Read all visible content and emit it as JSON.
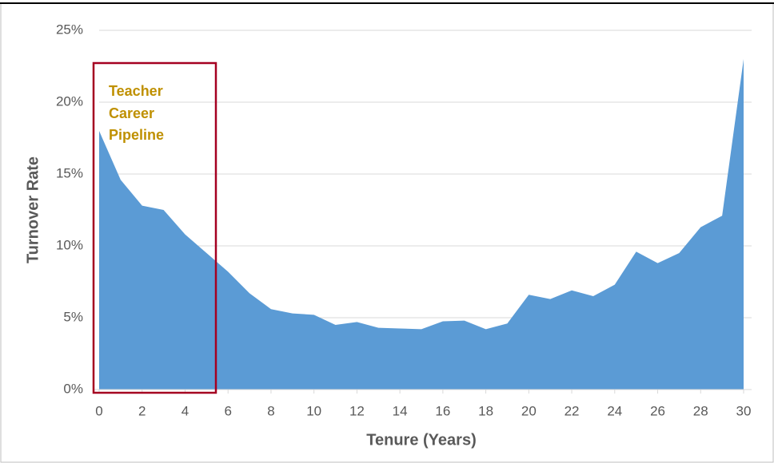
{
  "chart_data": {
    "type": "area",
    "x": [
      0,
      1,
      2,
      3,
      4,
      5,
      6,
      7,
      8,
      9,
      10,
      11,
      12,
      13,
      14,
      15,
      16,
      17,
      18,
      19,
      20,
      21,
      22,
      23,
      24,
      25,
      26,
      27,
      28,
      29,
      30
    ],
    "values": [
      18.0,
      14.6,
      12.8,
      12.5,
      10.8,
      9.5,
      8.2,
      6.7,
      5.6,
      5.3,
      5.2,
      4.5,
      4.7,
      4.3,
      4.25,
      4.2,
      4.75,
      4.8,
      4.2,
      4.6,
      6.6,
      6.3,
      6.9,
      6.5,
      7.3,
      9.6,
      8.8,
      9.5,
      11.3,
      12.1,
      23.0
    ],
    "color": "#5b9bd5",
    "xlim": [
      0,
      30
    ],
    "xticks": [
      0,
      2,
      4,
      6,
      8,
      10,
      12,
      14,
      16,
      18,
      20,
      22,
      24,
      26,
      28,
      30
    ],
    "ylim": [
      0,
      25
    ],
    "yticks": [
      {
        "value": 0,
        "label": "0%"
      },
      {
        "value": 5,
        "label": "5%"
      },
      {
        "value": 10,
        "label": "10%"
      },
      {
        "value": 15,
        "label": "15%"
      },
      {
        "value": 20,
        "label": "20%"
      },
      {
        "value": 25,
        "label": "25%"
      }
    ],
    "grid": true,
    "xlabel": "Tenure (Years)",
    "ylabel": "Turnover Rate",
    "annotation": [
      "Teacher",
      "Career",
      "Pipeline"
    ]
  }
}
